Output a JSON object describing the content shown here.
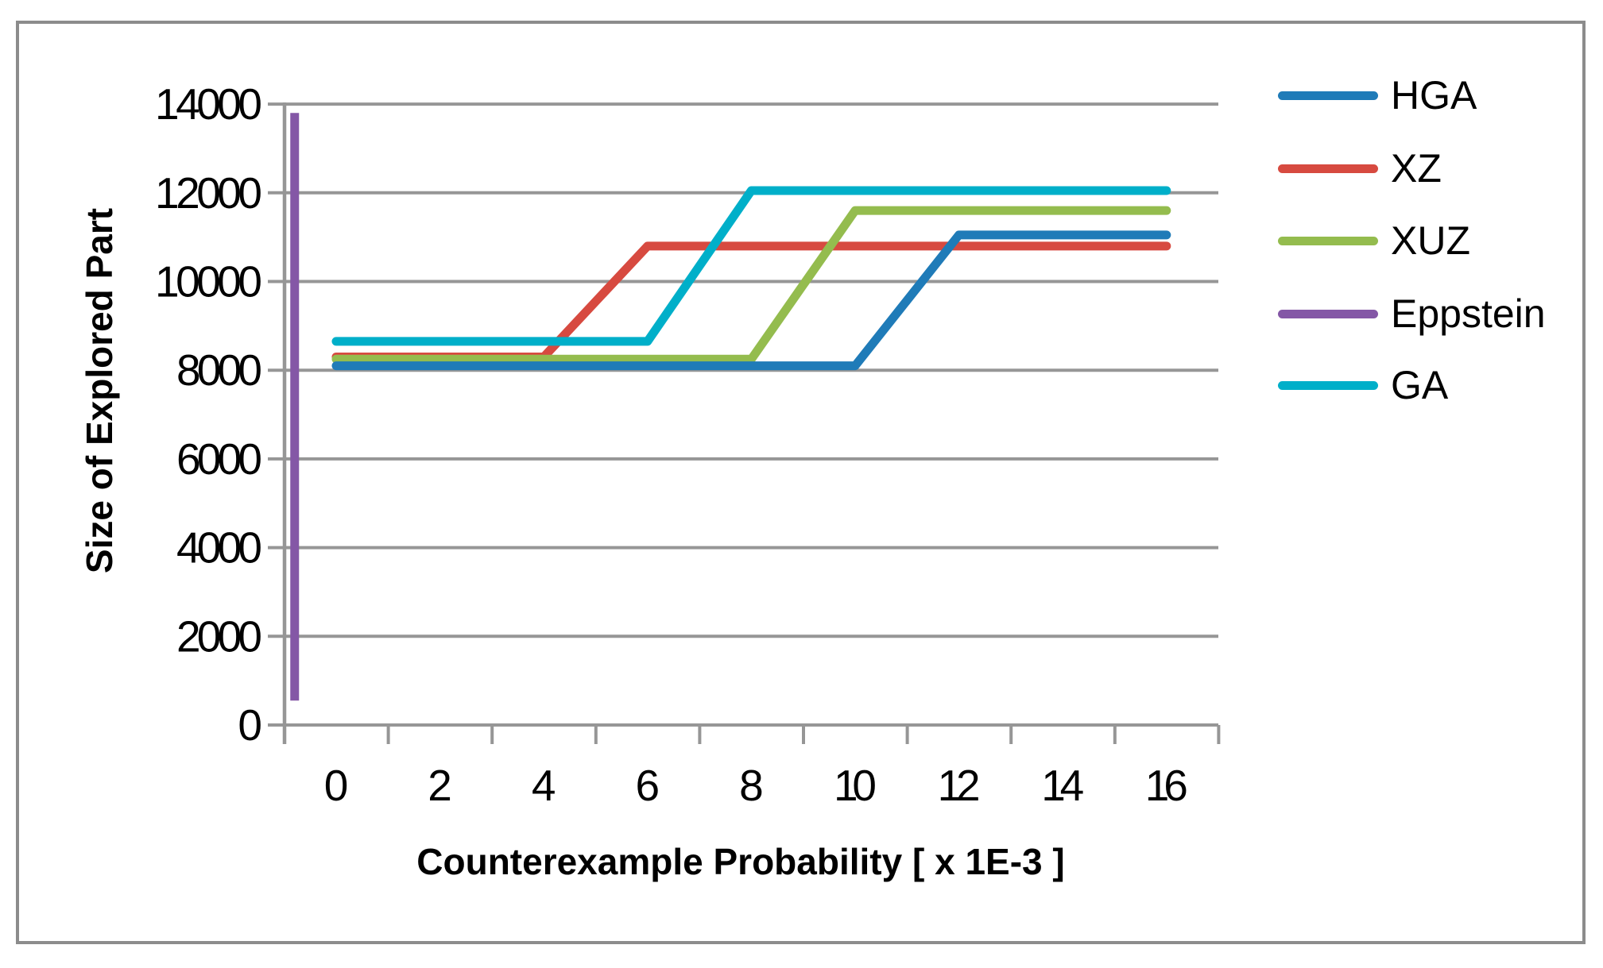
{
  "figure": {
    "background_color": "#ffffff",
    "border_color": "#8c8c8c"
  },
  "chart_data": {
    "type": "line",
    "title": "",
    "xlabel": "Counterexample Probability [ x 1E-3 ]",
    "ylabel": "Size of Explored Part",
    "grid": "horizontal",
    "grid_color": "#969696",
    "axis_color": "#969696",
    "text_color": "#000000",
    "legend_position": "right",
    "xlim": [
      0,
      16
    ],
    "ylim": [
      0,
      14000
    ],
    "y_tick_step": 2000,
    "x_tick_labels": [
      "0",
      "2",
      "4",
      "6",
      "8",
      "10",
      "12",
      "14",
      "16"
    ],
    "y_tick_labels": [
      "0",
      "2000",
      "4000",
      "6000",
      "8000",
      "10000",
      "12000",
      "14000"
    ],
    "categories": [
      0,
      2,
      4,
      6,
      8,
      10,
      12,
      14,
      16
    ],
    "series": [
      {
        "name": "HGA",
        "color": "#1f7bb8",
        "values": [
          8100,
          8100,
          8100,
          8100,
          8100,
          8100,
          11050,
          11050,
          11050
        ]
      },
      {
        "name": "XZ",
        "color": "#d74a40",
        "values": [
          8300,
          8300,
          8300,
          10800,
          10800,
          10800,
          10800,
          10800,
          10800
        ]
      },
      {
        "name": "XUZ",
        "color": "#94bc4e",
        "values": [
          8250,
          8250,
          8250,
          8250,
          8250,
          11600,
          11600,
          11600,
          11600
        ]
      },
      {
        "name": "Eppstein",
        "color": "#8457a6",
        "segment": {
          "x": -0.8,
          "y_from": 550,
          "y_to": 13800
        },
        "note": "vertical line at left edge of plot spanning ~550 to ~13800"
      },
      {
        "name": "GA",
        "color": "#00afc9",
        "values": [
          8650,
          8650,
          8650,
          8650,
          12050,
          12050,
          12050,
          12050,
          12050
        ]
      }
    ]
  }
}
